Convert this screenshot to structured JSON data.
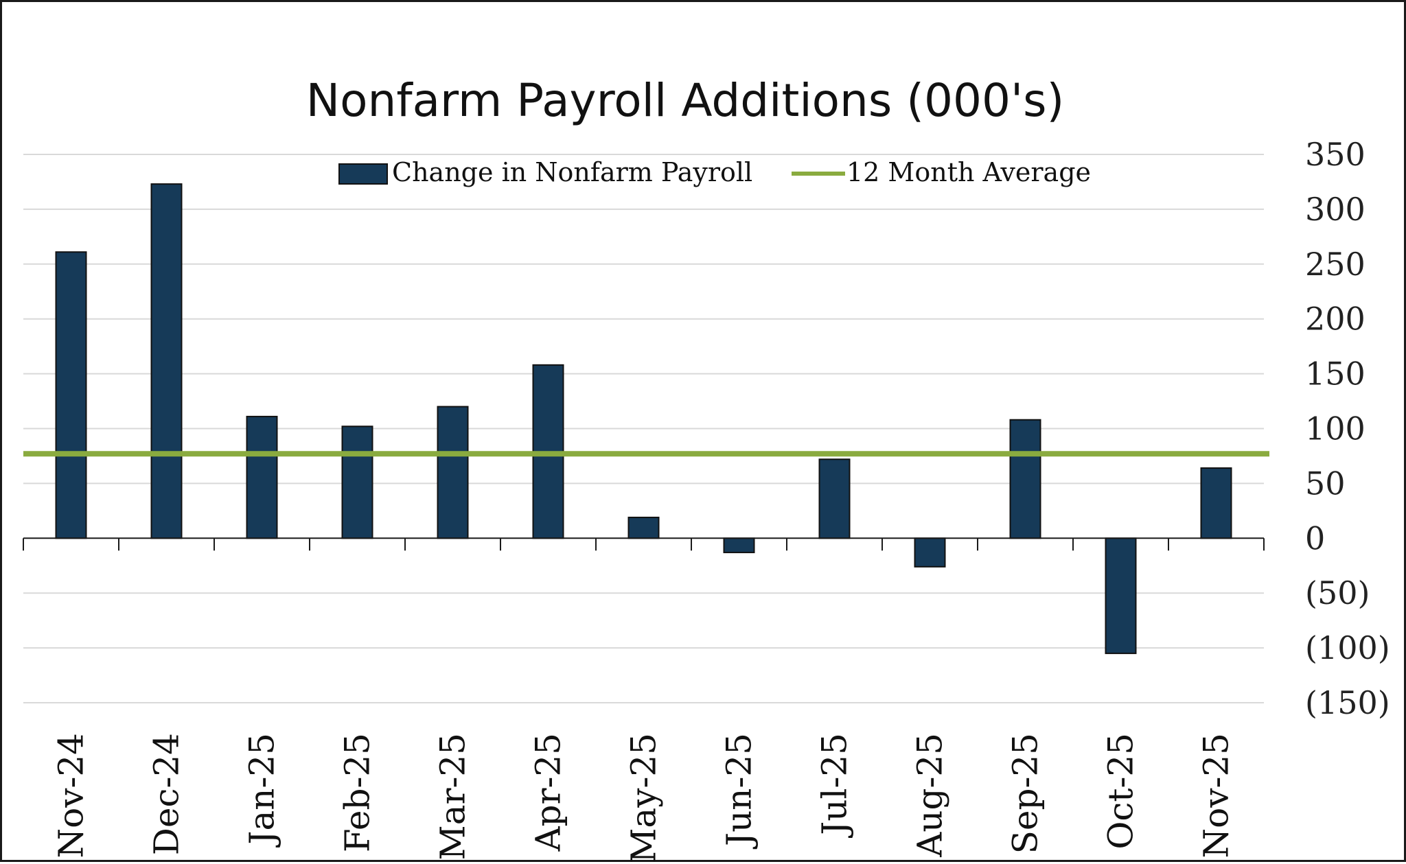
{
  "chart_data": {
    "type": "bar",
    "title": "Nonfarm Payroll Additions (000's)",
    "categories": [
      "Nov-24",
      "Dec-24",
      "Jan-25",
      "Feb-25",
      "Mar-25",
      "Apr-25",
      "May-25",
      "Jun-25",
      "Jul-25",
      "Aug-25",
      "Sep-25",
      "Oct-25",
      "Nov-25"
    ],
    "series": [
      {
        "name": "Change in Nonfarm Payroll",
        "type": "bar",
        "color": "#163a58",
        "values": [
          261,
          323,
          111,
          102,
          120,
          158,
          19,
          -13,
          72,
          -26,
          108,
          -105,
          64
        ]
      },
      {
        "name": "12 Month Average",
        "type": "line",
        "color": "#8aab3f",
        "values": [
          77,
          77,
          77,
          77,
          77,
          77,
          77,
          77,
          77,
          77,
          77,
          77,
          77
        ]
      }
    ],
    "ylim": [
      -150,
      350
    ],
    "yticks": [
      350,
      300,
      250,
      200,
      150,
      100,
      50,
      0,
      -50,
      -100,
      -150
    ],
    "ytick_labels": [
      "350",
      "300",
      "250",
      "200",
      "150",
      "100",
      "50",
      "0",
      "(50)",
      "(100)",
      "(150)"
    ],
    "y_axis_side": "right",
    "grid": true,
    "legend_position": "top-center"
  }
}
